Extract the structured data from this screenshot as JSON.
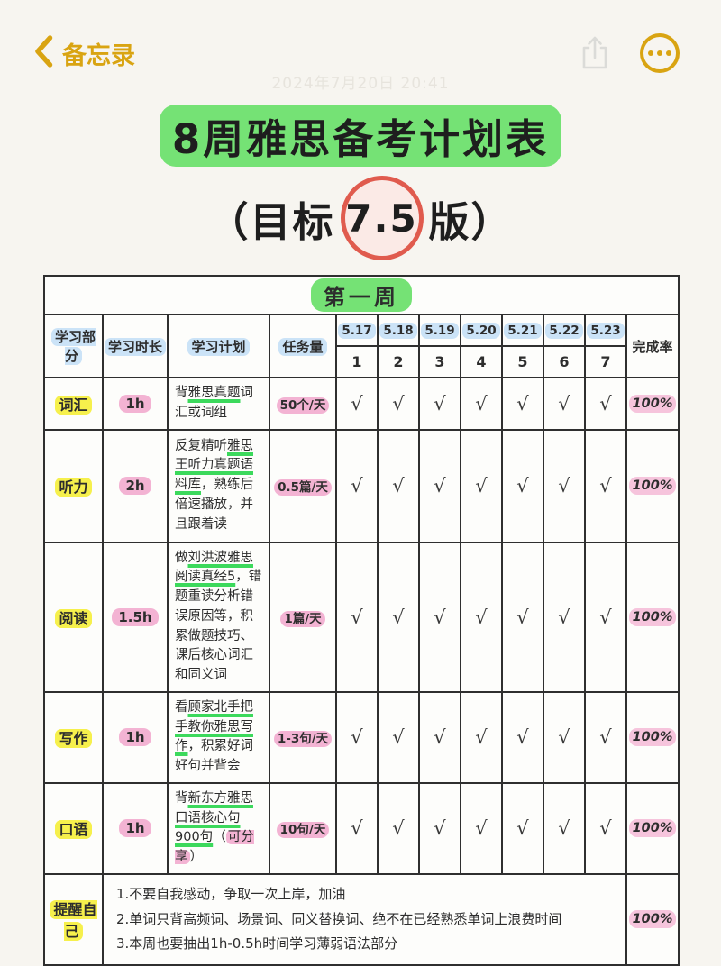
{
  "nav": {
    "back_label": "备忘录",
    "share_icon": "share-icon",
    "more_icon": "more-options-icon"
  },
  "note_date": "2024年7月20日 20:41",
  "title": {
    "line1": "8周雅思备考计划表",
    "line2_prefix": "（目标",
    "circle": "7.5",
    "line2_suffix": "版）"
  },
  "colors": {
    "accent_gold": "#D9A412",
    "highlight_green": "#75E275",
    "highlight_yellow": "#F6F04C",
    "highlight_pink": "#F3B3D3",
    "highlight_blue": "#CBE3F7",
    "underline_green": "#3CD95C",
    "circle_red": "#E05B4E"
  },
  "table": {
    "week_title": "第一周",
    "headers": {
      "part": "学习部分",
      "duration": "学习时长",
      "plan": "学习计划",
      "task": "任务量",
      "completion": "完成率"
    },
    "dates": [
      "5.17",
      "5.18",
      "5.19",
      "5.20",
      "5.21",
      "5.22",
      "5.23"
    ],
    "day_numbers": [
      "1",
      "2",
      "3",
      "4",
      "5",
      "6",
      "7"
    ],
    "rows": [
      {
        "part": "词汇",
        "duration": "1h",
        "plan": [
          {
            "t": "背"
          },
          {
            "t": "雅思真题",
            "u": true
          },
          {
            "t": "词汇或词组"
          }
        ],
        "task": "50个/天",
        "checks": [
          "√",
          "√",
          "√",
          "√",
          "√",
          "√",
          "√"
        ],
        "completion": "100%"
      },
      {
        "part": "听力",
        "duration": "2h",
        "plan": [
          {
            "t": "反复精听"
          },
          {
            "t": "雅思王听力真题语料库",
            "u": true
          },
          {
            "t": "，熟练后倍速播放，并且跟着读"
          }
        ],
        "task": "0.5篇/天",
        "checks": [
          "√",
          "√",
          "√",
          "√",
          "√",
          "√",
          "√"
        ],
        "completion": "100%"
      },
      {
        "part": "阅读",
        "duration": "1.5h",
        "plan": [
          {
            "t": "做"
          },
          {
            "t": "刘洪波雅思阅读真经5",
            "u": true
          },
          {
            "t": "，错题重读分析错误原因等，积累做题技巧、课后核心词汇和同义词"
          }
        ],
        "task": "1篇/天",
        "checks": [
          "√",
          "√",
          "√",
          "√",
          "√",
          "√",
          "√"
        ],
        "completion": "100%"
      },
      {
        "part": "写作",
        "duration": "1h",
        "plan": [
          {
            "t": "看"
          },
          {
            "t": "顾家北手把手教你雅思写作",
            "u": true
          },
          {
            "t": "，积累好词好句并背会"
          }
        ],
        "task": "1-3句/天",
        "checks": [
          "√",
          "√",
          "√",
          "√",
          "√",
          "√",
          "√"
        ],
        "completion": "100%"
      },
      {
        "part": "口语",
        "duration": "1h",
        "plan": [
          {
            "t": "背"
          },
          {
            "t": "新东方雅思口语核心句900句",
            "u": true
          },
          {
            "t": "（"
          },
          {
            "t": "可分享",
            "hl": true
          },
          {
            "t": "）"
          }
        ],
        "task": "10句/天",
        "checks": [
          "√",
          "√",
          "√",
          "√",
          "√",
          "√",
          "√"
        ],
        "completion": "100%"
      }
    ],
    "reminder": {
      "part": "提醒自己",
      "notes": [
        "1.不要自我感动，争取一次上岸，加油",
        "2.单词只背高频词、场景词、同义替换词、绝不在已经熟悉单词上浪费时间",
        "3.本周也要抽出1h-0.5h时间学习薄弱语法部分"
      ],
      "completion": "100%"
    }
  }
}
